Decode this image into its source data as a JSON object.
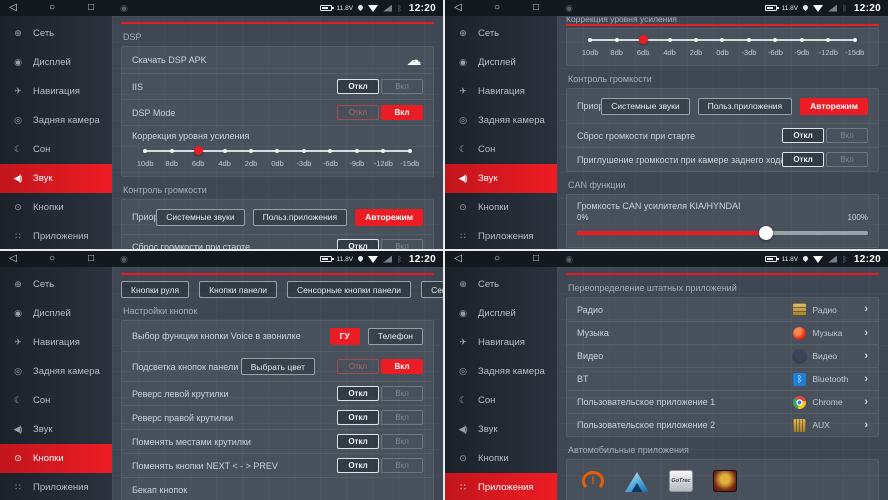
{
  "navbar": {
    "back": "◁",
    "home": "○",
    "recents": "□",
    "app_dot": "◉"
  },
  "statusbar": {
    "voltage": "11.8V",
    "time": "12:20",
    "bt_glyph": "ᛒ"
  },
  "toggle": {
    "off": "Откл",
    "on": "Вкл"
  },
  "sidebar": {
    "items": [
      {
        "label": "Сеть",
        "glyph": "⊕"
      },
      {
        "label": "Дисплей",
        "glyph": "◉"
      },
      {
        "label": "Навигация",
        "glyph": "✈"
      },
      {
        "label": "Задняя камера",
        "glyph": "◎"
      },
      {
        "label": "Сон",
        "glyph": "☾"
      },
      {
        "label": "Звук",
        "glyph": "◀)"
      },
      {
        "label": "Кнопки",
        "glyph": "⊙"
      },
      {
        "label": "Приложения",
        "glyph": "∷"
      }
    ]
  },
  "sound_top": {
    "section_dsp": "DSP",
    "download_label": "Скачать DSP APK",
    "cloud_glyph": "☁",
    "iis_label": "IIS",
    "dsp_mode_label": "DSP Mode",
    "gain_label": "Коррекция уровня усиления",
    "gain_ticks": [
      "10db",
      "8db",
      "6db",
      "4db",
      "2db",
      "0db",
      "-3db",
      "-6db",
      "-9db",
      "-12db",
      "-15db"
    ],
    "gain_selected": "6db",
    "section_volume": "Контроль громкости",
    "priority_label": "Приоритет звуков",
    "priority_options": [
      "Системные звуки",
      "Польз.приложения",
      "Авторежим"
    ],
    "priority_selected": "Авторежим",
    "reset_volume_label": "Сброс громкости при старте"
  },
  "sound_bottom": {
    "gain_label": "Коррекция уровня усиления",
    "mute_camera_label": "Приглушение громкости при камере заднего хода",
    "section_can": "CAN функции",
    "can_volume_label": "Громкость CAN усилителя KIA/HYNDAI",
    "can_min": "0%",
    "can_max": "100%",
    "can_value_pct": 65,
    "can_fill_style": "width:65%",
    "can_thumb_style": "left:calc(65% - 7px)"
  },
  "buttons_page": {
    "tabs": [
      "Кнопки руля",
      "Кнопки панели",
      "Сенсорные кнопки панели",
      "Сенсор ТВ (IO)"
    ],
    "section": "Настройки кнопок",
    "voice_label": "Выбор функции кнопки Voice в звонилке",
    "voice_options": [
      "ГУ",
      "Телефон"
    ],
    "voice_selected": "ГУ",
    "backlight_label": "Подсветка кнопок панели",
    "pick_color_label": "Выбрать цвет",
    "toggle_rows": [
      "Реверс левой крутилки",
      "Реверс правой крутилки",
      "Поменять местами крутилки",
      "Поменять кнопки NEXT < - > PREV"
    ],
    "backup_label": "Бекап кнопок"
  },
  "apps_page": {
    "section_override": "Переопределение штатных приложений",
    "chevron": "›",
    "rows": [
      {
        "label": "Радио",
        "app": "Радио"
      },
      {
        "label": "Музыка",
        "app": "Музыка"
      },
      {
        "label": "Видео",
        "app": "Видео"
      },
      {
        "label": "BT",
        "app": "Bluetooth"
      },
      {
        "label": "Пользовательское приложение 1",
        "app": "Chrome"
      },
      {
        "label": "Пользовательское приложение 2",
        "app": "AUX"
      }
    ],
    "section_car": "Автомобильные приложения",
    "car_apps": [
      {
        "name": "TPMS",
        "badge": "!"
      },
      {
        "name": "Android Auto"
      },
      {
        "name": "GoTrec",
        "badge": "GoTrec"
      },
      {
        "name": "OBD"
      }
    ]
  }
}
